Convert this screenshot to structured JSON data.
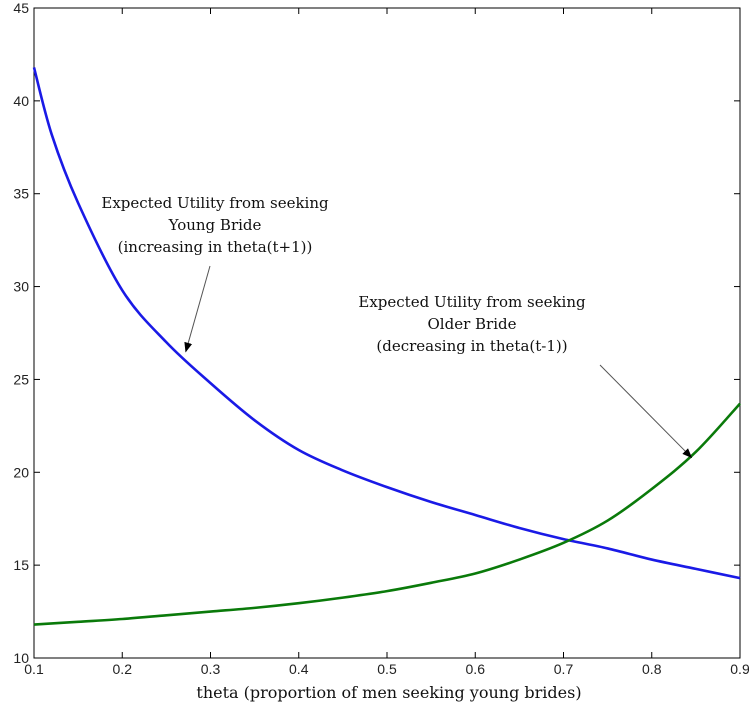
{
  "chart_data": {
    "type": "line",
    "title": "",
    "xlabel": "theta (proportion of men seeking young brides)",
    "ylabel": "",
    "xlim": [
      0.1,
      0.9
    ],
    "ylim": [
      10,
      45
    ],
    "xticks": [
      "0.1",
      "0.2",
      "0.3",
      "0.4",
      "0.5",
      "0.6",
      "0.7",
      "0.8",
      "0.9"
    ],
    "yticks": [
      "10",
      "15",
      "20",
      "25",
      "30",
      "35",
      "40",
      "45"
    ],
    "grid": false,
    "series": [
      {
        "color": "#1a1ae6",
        "x": [
          0.1,
          0.12,
          0.15,
          0.2,
          0.25,
          0.3,
          0.35,
          0.4,
          0.45,
          0.5,
          0.55,
          0.6,
          0.65,
          0.7,
          0.75,
          0.8,
          0.85,
          0.9
        ],
        "y": [
          41.8,
          38.2,
          34.5,
          29.8,
          27.0,
          24.8,
          22.8,
          21.2,
          20.1,
          19.2,
          18.4,
          17.7,
          17.0,
          16.4,
          15.9,
          15.3,
          14.8,
          14.3
        ]
      },
      {
        "color": "#0a7a0a",
        "x": [
          0.1,
          0.15,
          0.2,
          0.25,
          0.3,
          0.35,
          0.4,
          0.45,
          0.5,
          0.55,
          0.6,
          0.65,
          0.7,
          0.75,
          0.8,
          0.85,
          0.9
        ],
        "y": [
          11.8,
          11.95,
          12.1,
          12.3,
          12.5,
          12.7,
          12.95,
          13.25,
          13.6,
          14.05,
          14.55,
          15.3,
          16.2,
          17.4,
          19.1,
          21.1,
          23.7
        ]
      }
    ],
    "annotations": [
      {
        "lines": [
          "Expected Utility from seeking",
          "Young Bride",
          "(increasing in theta(t+1))"
        ],
        "arrow_to": [
          0.272,
          26.5
        ]
      },
      {
        "lines": [
          "Expected Utility from seeking",
          "Older Bride",
          "(decreasing in theta(t-1))"
        ],
        "arrow_to": [
          0.845,
          20.8
        ]
      }
    ]
  }
}
